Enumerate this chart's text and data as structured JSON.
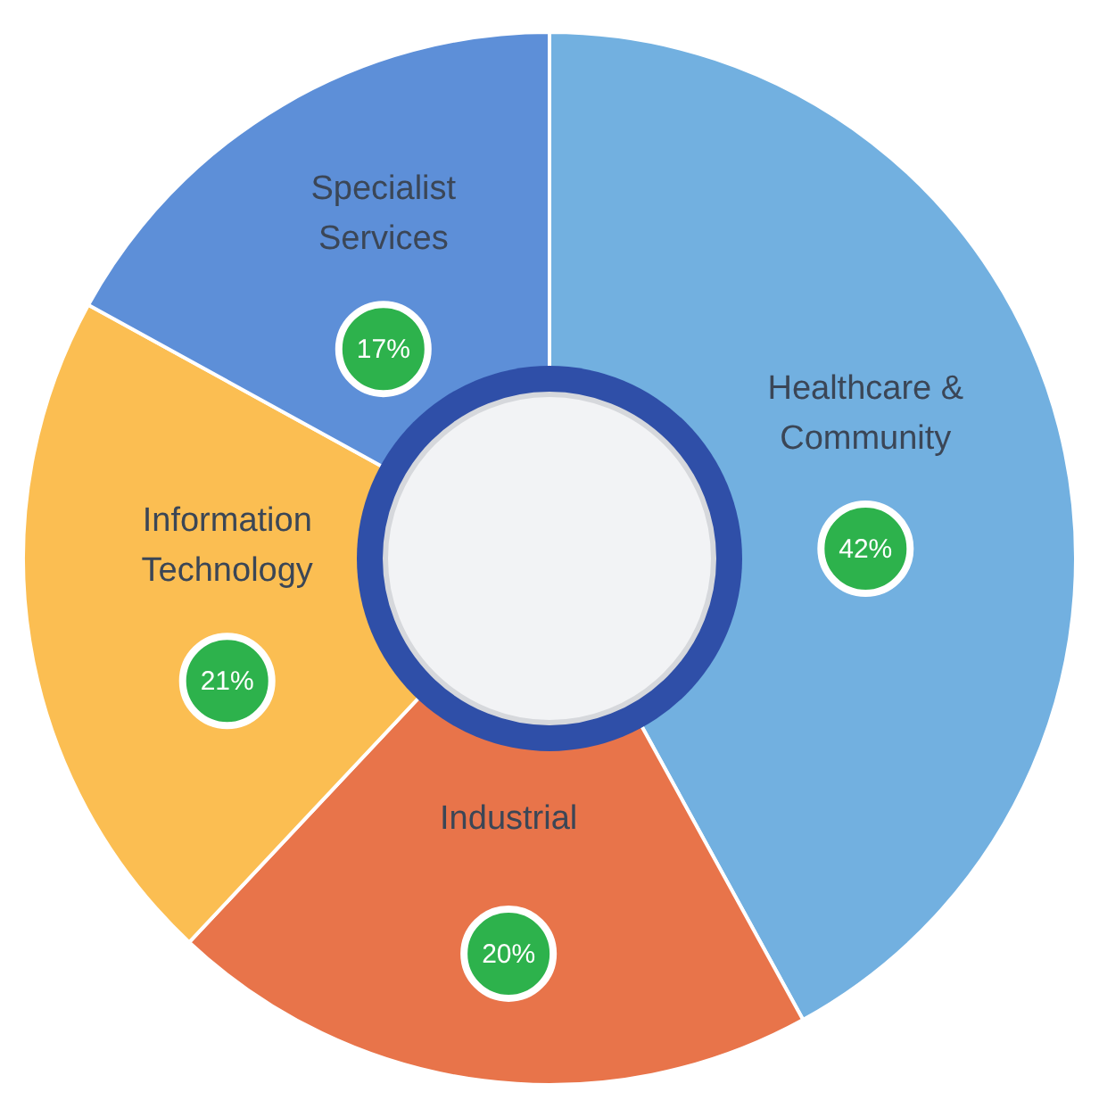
{
  "chart_data": {
    "type": "donut",
    "categories": [
      "Healthcare & Community",
      "Industrial",
      "Information Technology",
      "Specialist Services"
    ],
    "values": [
      42,
      20,
      21,
      17
    ],
    "colors": [
      "#72b0e0",
      "#e8744a",
      "#fbbe52",
      "#5d8fd8"
    ],
    "value_labels": [
      "42%",
      "20%",
      "21%",
      "17%"
    ]
  }
}
